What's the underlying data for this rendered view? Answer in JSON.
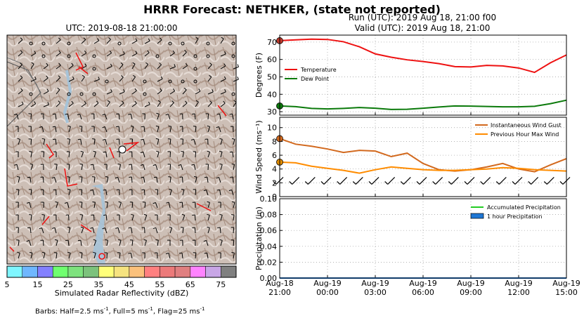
{
  "figure": {
    "title": "HRRR Forecast: NETHKER, (state not reported)",
    "map_title": "UTC: 2019-08-18 21:00:00",
    "run_text": "Run (UTC): 2019 Aug 18, 21:00 f00",
    "valid_text": "Valid (UTC): 2019 Aug 18, 21:00",
    "colorbar_label": "Simulated Radar Reflectivity (dBZ)",
    "colorbar_ticks": [
      "5",
      "15",
      "25",
      "35",
      "45",
      "55",
      "65",
      "75"
    ],
    "colorbar_colors": [
      "#7ff6ff",
      "#6fb7ff",
      "#8380ff",
      "#6fff6f",
      "#7ee27e",
      "#7cc27c",
      "#ffff7a",
      "#f6e37f",
      "#fbc17c",
      "#ff8080",
      "#ec7a7a",
      "#e07f80",
      "#ff83ff",
      "#c8a6e6",
      "#808080"
    ],
    "barbs_note_html": "Barbs: Half=2.5 ms<sup>-1</sup>, Full=5 ms<sup>-1</sup>, Flag=25 ms<sup>-1</sup>"
  },
  "chart_data": [
    {
      "type": "line",
      "panel": "temperature",
      "ylabel": "Degrees (F)",
      "ylim": [
        28,
        74
      ],
      "yticks": [
        30,
        40,
        50,
        60,
        70
      ],
      "legend_position": "left-middle",
      "x_hours": [
        0,
        1,
        2,
        3,
        4,
        5,
        6,
        7,
        8,
        9,
        10,
        11,
        12,
        13,
        14,
        15,
        16,
        17,
        18
      ],
      "series": [
        {
          "name": "Temperature",
          "color": "#ee1111",
          "values": [
            70.8,
            71.3,
            71.7,
            71.5,
            70.2,
            67.3,
            63.2,
            61.3,
            59.8,
            58.8,
            57.6,
            55.9,
            55.7,
            56.6,
            56.3,
            55.1,
            52.6,
            58.1,
            62.6
          ]
        },
        {
          "name": "Dew Point",
          "color": "#0b7a0b",
          "values": [
            33.3,
            32.9,
            31.9,
            31.6,
            31.9,
            32.4,
            32.0,
            31.3,
            31.4,
            32.0,
            32.7,
            33.3,
            33.2,
            33.0,
            32.8,
            32.8,
            33.1,
            34.6,
            36.6
          ]
        }
      ]
    },
    {
      "type": "line",
      "panel": "wind",
      "ylabel": "Wind Speed (ms⁻¹)",
      "ylim": [
        0,
        11.5
      ],
      "yticks": [
        0,
        2,
        4,
        6,
        8,
        10
      ],
      "legend_position": "top-right",
      "x_hours": [
        0,
        1,
        2,
        3,
        4,
        5,
        6,
        7,
        8,
        9,
        10,
        11,
        12,
        13,
        14,
        15,
        16,
        17,
        18
      ],
      "series": [
        {
          "name": "Instantaneous Wind Gust",
          "color": "#d2691e",
          "values": [
            8.4,
            7.6,
            7.3,
            6.9,
            6.4,
            6.7,
            6.6,
            5.8,
            6.3,
            4.8,
            3.9,
            3.7,
            3.9,
            4.3,
            4.8,
            4.0,
            3.6,
            4.6,
            5.5
          ]
        },
        {
          "name": "Previous Hour Max Wind",
          "color": "#ff8c00",
          "values": [
            5.0,
            4.9,
            4.4,
            4.1,
            3.8,
            3.4,
            3.9,
            4.3,
            4.1,
            3.9,
            3.8,
            3.8,
            3.9,
            4.0,
            4.2,
            4.1,
            3.9,
            3.8,
            3.7
          ]
        }
      ]
    },
    {
      "type": "line",
      "panel": "precipitation",
      "ylabel": "Precipitation (in)",
      "ylim": [
        0,
        0.1
      ],
      "yticks": [
        "0.00",
        "0.02",
        "0.04",
        "0.06",
        "0.08",
        "0.10"
      ],
      "legend_position": "top-right",
      "xticks": [
        {
          "hour": 0,
          "date": "Aug-18",
          "time": "21:00"
        },
        {
          "hour": 3,
          "date": "Aug-19",
          "time": "00:00"
        },
        {
          "hour": 6,
          "date": "Aug-19",
          "time": "03:00"
        },
        {
          "hour": 9,
          "date": "Aug-19",
          "time": "06:00"
        },
        {
          "hour": 12,
          "date": "Aug-19",
          "time": "09:00"
        },
        {
          "hour": 15,
          "date": "Aug-19",
          "time": "12:00"
        },
        {
          "hour": 18,
          "date": "Aug-19",
          "time": "15:00"
        }
      ],
      "series": [
        {
          "name": "Accumulated Precipitation",
          "color": "#22cc22",
          "values": [
            0,
            0,
            0,
            0,
            0,
            0,
            0,
            0,
            0,
            0,
            0,
            0,
            0,
            0,
            0,
            0,
            0,
            0,
            0
          ]
        },
        {
          "name": "1 hour Precipitation",
          "color": "#1f77d4",
          "values": [
            0,
            0,
            0,
            0,
            0,
            0,
            0,
            0,
            0,
            0,
            0,
            0,
            0,
            0,
            0,
            0,
            0,
            0,
            0
          ]
        }
      ]
    }
  ]
}
